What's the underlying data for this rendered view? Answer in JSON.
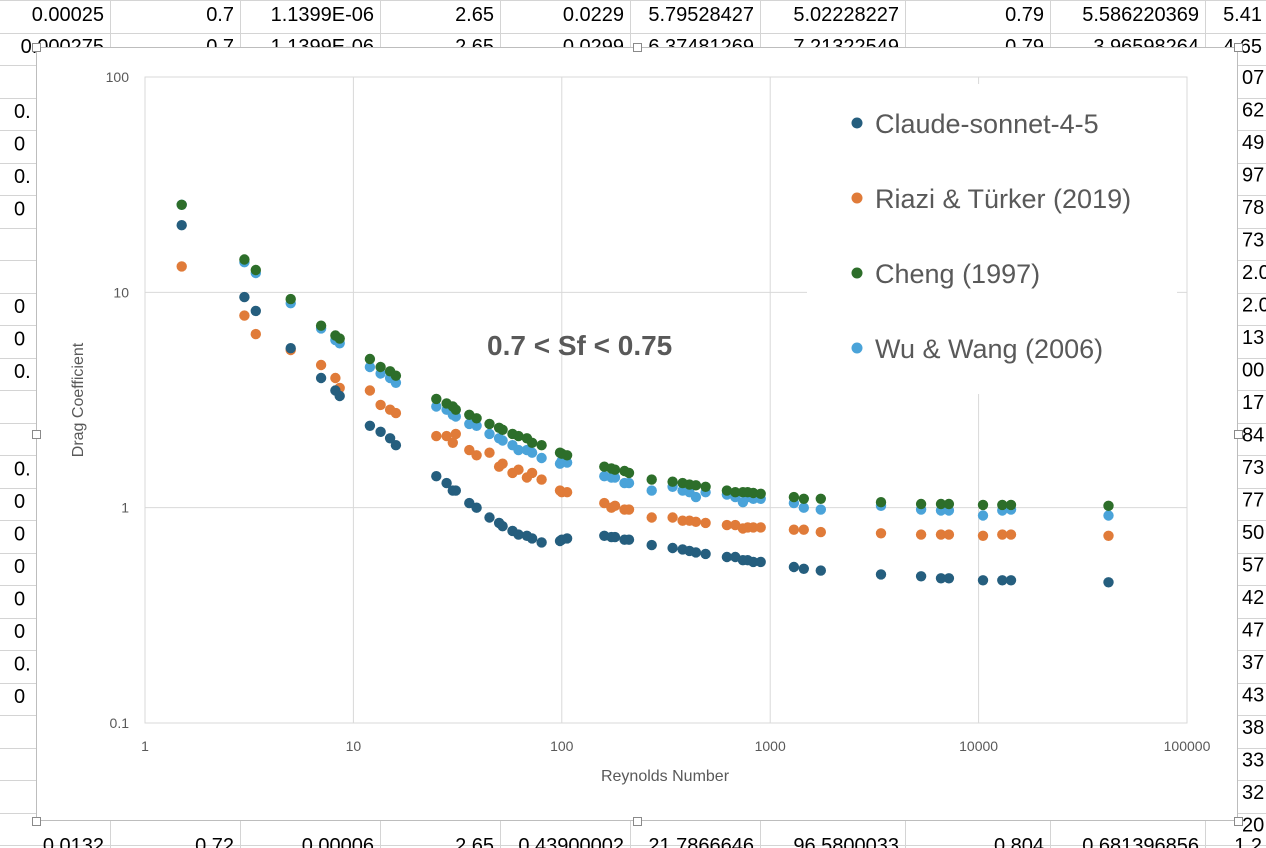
{
  "spreadsheet": {
    "top_rows": [
      [
        "0.00025",
        "0.7",
        "1.1399E-06",
        "2.65",
        "0.0229",
        "5.79528427",
        "5.02228227",
        "0.79",
        "5.586220369",
        "5.41"
      ],
      [
        "0.000275",
        "0.7",
        "1.1399E-06",
        "2.65",
        "0.0299",
        "6.37481269",
        "7.21322549",
        "0.79",
        "3.96598264",
        "4.65"
      ]
    ],
    "bottom_row": [
      "0.0132",
      "0.72",
      "0.00006",
      "2.65",
      "0.43900002",
      "21.7866646",
      "96.5800033",
      "0.804",
      "0.681396856",
      "1.2"
    ],
    "left_col": [
      "0.",
      "0",
      "0.",
      "0",
      "",
      "",
      "0",
      "0",
      "0.",
      "",
      "",
      "0.",
      "0",
      "0",
      "0",
      "0",
      "0",
      "0.",
      "0"
    ],
    "right_col": [
      "07",
      "62",
      "49",
      "97",
      "78",
      "73",
      "2.0",
      "2.0",
      "13",
      "00",
      "17",
      "84",
      "73",
      "77",
      "50",
      "57",
      "42",
      "47",
      "37",
      "43",
      "38",
      "33",
      "32",
      "20"
    ]
  },
  "chart_data": {
    "type": "scatter",
    "title": "",
    "xlabel": "Reynolds Number",
    "ylabel": "Drag Coefficient",
    "xscale": "log",
    "yscale": "log",
    "xlim": [
      1,
      100000
    ],
    "ylim": [
      0.1,
      100
    ],
    "xticks": [
      "1",
      "10",
      "100",
      "1000",
      "10000",
      "100000"
    ],
    "yticks": [
      "0.1",
      "1",
      "10",
      "100"
    ],
    "grid": true,
    "legend_position": "top-right",
    "annotation": "0.7 < Sf < 0.75",
    "x": [
      1.5,
      3.0,
      3.4,
      5.0,
      7.0,
      8.2,
      8.6,
      12,
      13.5,
      15,
      16,
      25,
      28,
      30,
      31,
      36,
      39,
      45,
      50,
      52,
      58,
      62,
      68,
      72,
      80,
      98,
      100,
      106,
      160,
      173,
      180,
      200,
      210,
      270,
      340,
      380,
      410,
      440,
      490,
      620,
      680,
      740,
      780,
      830,
      900,
      1300,
      1450,
      1750,
      3400,
      5300,
      6600,
      7200,
      10500,
      13000,
      14300,
      42000
    ],
    "series": [
      {
        "name": "Claude-sonnet-4-5",
        "color": "#255e7e",
        "values": [
          20.5,
          9.5,
          8.2,
          5.5,
          4.0,
          3.5,
          3.3,
          2.4,
          2.25,
          2.1,
          1.95,
          1.4,
          1.3,
          1.2,
          1.2,
          1.05,
          1.0,
          0.9,
          0.85,
          0.82,
          0.78,
          0.75,
          0.74,
          0.72,
          0.69,
          0.7,
          0.71,
          0.72,
          0.74,
          0.73,
          0.73,
          0.71,
          0.71,
          0.67,
          0.65,
          0.64,
          0.63,
          0.62,
          0.61,
          0.59,
          0.59,
          0.57,
          0.57,
          0.56,
          0.56,
          0.53,
          0.52,
          0.51,
          0.49,
          0.48,
          0.47,
          0.47,
          0.46,
          0.46,
          0.46,
          0.45
        ]
      },
      {
        "name": "Riazi & Türker (2019)",
        "color": "#e07b39",
        "values": [
          13.2,
          7.8,
          6.4,
          5.4,
          4.6,
          4.0,
          3.6,
          3.5,
          3.0,
          2.85,
          2.75,
          2.15,
          2.15,
          2.0,
          2.2,
          1.85,
          1.75,
          1.8,
          1.55,
          1.6,
          1.45,
          1.5,
          1.38,
          1.45,
          1.35,
          1.2,
          1.18,
          1.18,
          1.05,
          1.0,
          1.02,
          0.98,
          0.98,
          0.9,
          0.9,
          0.87,
          0.87,
          0.86,
          0.85,
          0.83,
          0.83,
          0.8,
          0.81,
          0.81,
          0.81,
          0.79,
          0.79,
          0.77,
          0.76,
          0.75,
          0.75,
          0.75,
          0.74,
          0.75,
          0.75,
          0.74
        ]
      },
      {
        "name": "Cheng (1997)",
        "color": "#2d6e2a",
        "values": [
          25.5,
          14.2,
          12.7,
          9.3,
          7.0,
          6.3,
          6.1,
          4.9,
          4.5,
          4.3,
          4.1,
          3.2,
          3.05,
          2.95,
          2.85,
          2.7,
          2.6,
          2.45,
          2.35,
          2.3,
          2.2,
          2.15,
          2.1,
          2.0,
          1.95,
          1.8,
          1.78,
          1.75,
          1.55,
          1.52,
          1.5,
          1.48,
          1.45,
          1.35,
          1.32,
          1.3,
          1.28,
          1.27,
          1.25,
          1.2,
          1.18,
          1.18,
          1.18,
          1.17,
          1.16,
          1.12,
          1.1,
          1.1,
          1.06,
          1.04,
          1.04,
          1.04,
          1.03,
          1.03,
          1.03,
          1.02
        ]
      },
      {
        "name": "Wu & Wang (2006)",
        "color": "#4aa3d9",
        "values": [
          25.5,
          13.8,
          12.3,
          8.9,
          6.8,
          6.0,
          5.8,
          4.5,
          4.2,
          4.0,
          3.8,
          2.95,
          2.85,
          2.7,
          2.65,
          2.45,
          2.4,
          2.2,
          2.1,
          2.05,
          1.95,
          1.85,
          1.85,
          1.8,
          1.7,
          1.6,
          1.65,
          1.62,
          1.4,
          1.38,
          1.38,
          1.3,
          1.3,
          1.2,
          1.25,
          1.2,
          1.18,
          1.12,
          1.18,
          1.15,
          1.12,
          1.06,
          1.12,
          1.1,
          1.1,
          1.05,
          1.0,
          0.98,
          1.02,
          0.98,
          0.97,
          0.97,
          0.92,
          0.97,
          0.98,
          0.92
        ]
      }
    ]
  }
}
